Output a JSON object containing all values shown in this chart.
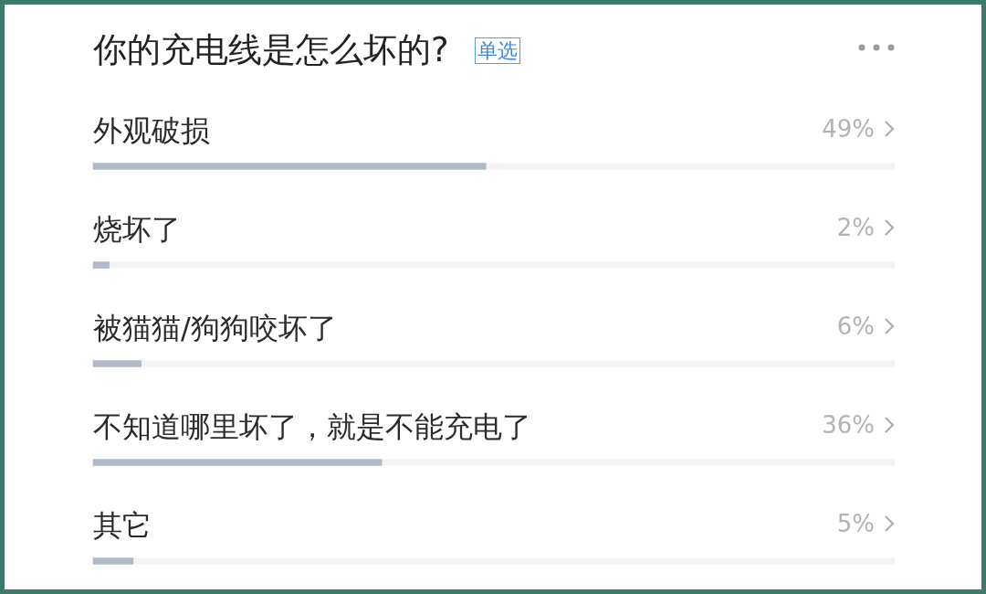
{
  "chart_data": {
    "type": "bar",
    "orientation": "horizontal",
    "title": "你的充电线是怎么坏的?",
    "subtitle": "单选",
    "categories": [
      "外观破损",
      "烧坏了",
      "被猫猫/狗狗咬坏了",
      "不知道哪里坏了，就是不能充电了",
      "其它"
    ],
    "values": [
      49,
      2,
      6,
      36,
      5
    ],
    "color": "#b1bbc7",
    "value_labels": [
      "49%",
      "2%",
      "6%",
      "36%",
      "5%"
    ],
    "xlim": [
      0,
      100
    ],
    "tick_labels": "y",
    "grid": false,
    "legend": false
  }
}
